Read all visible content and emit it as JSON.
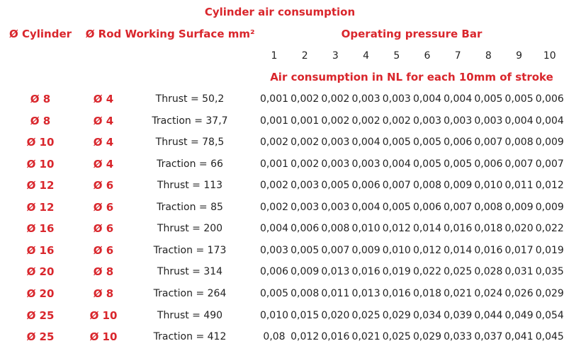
{
  "title": "Cylinder air consumption",
  "header": {
    "cylinder": "Ø Cylinder",
    "rod": "Ø Rod",
    "surface": "Working Surface mm²",
    "pressure": "Operating pressure Bar",
    "pressures": [
      1,
      2,
      3,
      4,
      5,
      6,
      7,
      8,
      9,
      10
    ],
    "subtitle": "Air consumption in NL for each 10mm of stroke"
  },
  "rows": [
    [
      "Ø 8",
      "Ø 4",
      "Thrust = 50,2",
      "0,001",
      "0,002",
      "0,002",
      "0,003",
      "0,003",
      "0,004",
      "0,004",
      "0,005",
      "0,005",
      "0,006"
    ],
    [
      "Ø 8",
      "Ø 4",
      "Traction = 37,7",
      "0,001",
      "0,001",
      "0,002",
      "0,002",
      "0,002",
      "0,003",
      "0,003",
      "0,003",
      "0,004",
      "0,004"
    ],
    [
      "Ø 10",
      "Ø 4",
      "Thrust = 78,5",
      "0,002",
      "0,002",
      "0,003",
      "0,004",
      "0,005",
      "0,005",
      "0,006",
      "0,007",
      "0,008",
      "0,009"
    ],
    [
      "Ø 10",
      "Ø 4",
      "Traction = 66",
      "0,001",
      "0,002",
      "0,003",
      "0,003",
      "0,004",
      "0,005",
      "0,005",
      "0,006",
      "0,007",
      "0,007"
    ],
    [
      "Ø 12",
      "Ø 6",
      "Thrust = 113",
      "0,002",
      "0,003",
      "0,005",
      "0,006",
      "0,007",
      "0,008",
      "0,009",
      "0,010",
      "0,011",
      "0,012"
    ],
    [
      "Ø 12",
      "Ø 6",
      "Traction = 85",
      "0,002",
      "0,003",
      "0,003",
      "0,004",
      "0,005",
      "0,006",
      "0,007",
      "0,008",
      "0,009",
      "0,009"
    ],
    [
      "Ø 16",
      "Ø 6",
      "Thrust = 200",
      "0,004",
      "0,006",
      "0,008",
      "0,010",
      "0,012",
      "0,014",
      "0,016",
      "0,018",
      "0,020",
      "0,022"
    ],
    [
      "Ø 16",
      "Ø 6",
      "Traction = 173",
      "0,003",
      "0,005",
      "0,007",
      "0,009",
      "0,010",
      "0,012",
      "0,014",
      "0,016",
      "0,017",
      "0,019"
    ],
    [
      "Ø 20",
      "Ø 8",
      "Thrust = 314",
      "0,006",
      "0,009",
      "0,013",
      "0,016",
      "0,019",
      "0,022",
      "0,025",
      "0,028",
      "0,031",
      "0,035"
    ],
    [
      "Ø 20",
      "Ø 8",
      "Traction = 264",
      "0,005",
      "0,008",
      "0,011",
      "0,013",
      "0,016",
      "0,018",
      "0,021",
      "0,024",
      "0,026",
      "0,029"
    ],
    [
      "Ø 25",
      "Ø 10",
      "Thrust = 490",
      "0,010",
      "0,015",
      "0,020",
      "0,025",
      "0,029",
      "0,034",
      "0,039",
      "0,044",
      "0,049",
      "0,054"
    ],
    [
      "Ø 25",
      "Ø 10",
      "Traction = 412",
      "0,08",
      "0,012",
      "0,016",
      "0,021",
      "0,025",
      "0,029",
      "0,033",
      "0,037",
      "0,041",
      "0,045"
    ]
  ]
}
